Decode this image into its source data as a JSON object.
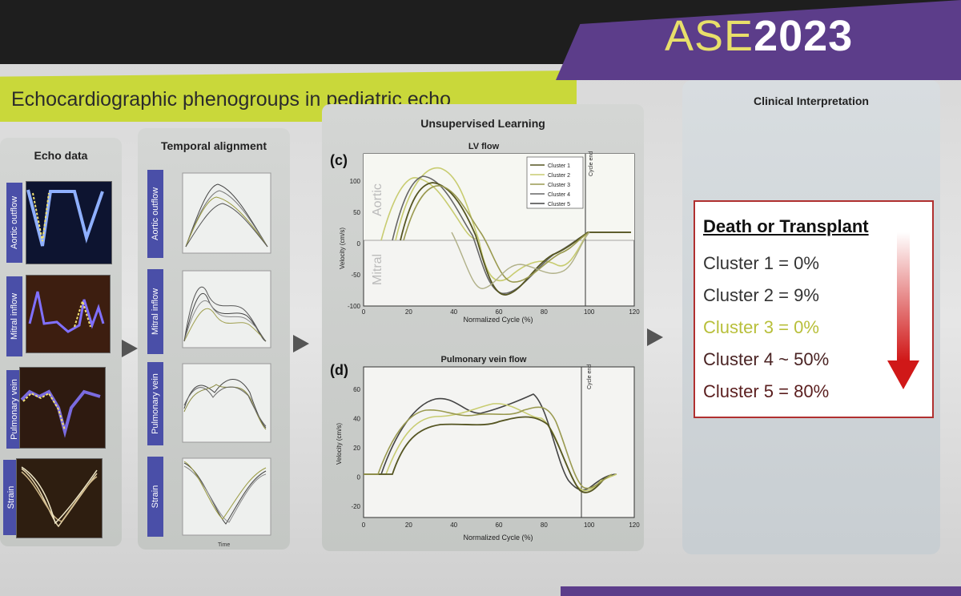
{
  "slide": {
    "title": "Echocardiographic phenogroups in pediatric echo",
    "brand": {
      "prefix": "ASE",
      "year": "2023"
    }
  },
  "panels": {
    "echo": {
      "title": "Echo data",
      "rows": [
        "Aortic outflow",
        "Mitral inflow",
        "Pulmonary vein",
        "Strain"
      ]
    },
    "temporal": {
      "title": "Temporal alignment",
      "rows": [
        "Aortic outflow",
        "Mitral inflow",
        "Pulmonary vein",
        "Strain"
      ],
      "xlabel": "Time"
    },
    "unsupervised": {
      "title": "Unsupervised Learning"
    },
    "clinical": {
      "title": "Clinical Interpretation"
    }
  },
  "plots": {
    "lv": {
      "tag": "(c)",
      "title": "LV flow",
      "xlabel": "Normalized Cycle (%)",
      "ylabel": "Velocity (cm/s)",
      "region_top": "Aortic",
      "region_bottom": "Mitral",
      "cycle_end_label": "Cycle end",
      "xticks": [
        "0",
        "20",
        "40",
        "60",
        "80",
        "100",
        "120"
      ],
      "yticks": [
        "100",
        "50",
        "0",
        "-50",
        "-100"
      ],
      "legend": [
        "Cluster 1",
        "Cluster 2",
        "Cluster 3",
        "Cluster 4",
        "Cluster 5"
      ]
    },
    "pv": {
      "tag": "(d)",
      "title": "Pulmonary vein flow",
      "xlabel": "Normalized Cycle (%)",
      "ylabel": "Velocity (cm/s)",
      "cycle_end_label": "Cycle end",
      "xticks": [
        "0",
        "20",
        "40",
        "60",
        "80",
        "100",
        "120"
      ],
      "yticks": [
        "60",
        "40",
        "20",
        "0",
        "-20"
      ]
    }
  },
  "outcome": {
    "heading": "Death or Transplant",
    "rows": [
      {
        "text": "Cluster 1 = 0%",
        "color": "#333333"
      },
      {
        "text": "Cluster 2 = 9%",
        "color": "#333333"
      },
      {
        "text": "Cluster 3 = 0%",
        "color": "#b8bf3a"
      },
      {
        "text": "Cluster 4 ~ 50%",
        "color": "#4a2323"
      },
      {
        "text": "Cluster 5 = 80%",
        "color": "#5a1e1e"
      }
    ]
  },
  "colors": {
    "title_bar": "#c9d83a",
    "brand_bar": "#5c3d8a",
    "label_tab": "#4a4fa8",
    "outcome_border": "#b03030"
  }
}
